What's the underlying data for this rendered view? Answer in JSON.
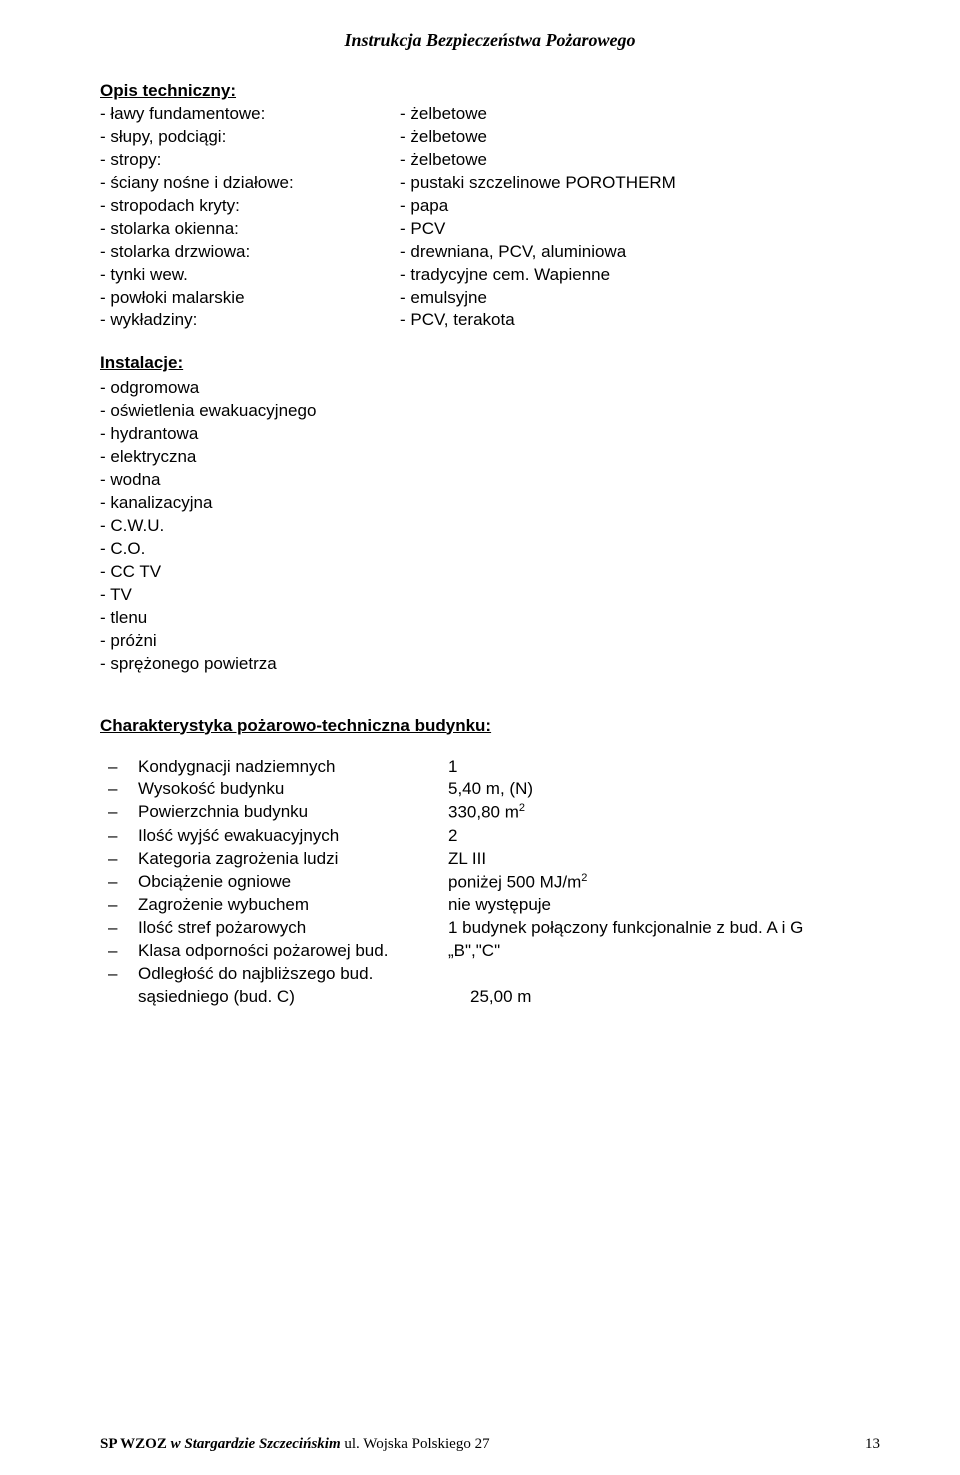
{
  "header": {
    "title": "Instrukcja Bezpieczeństwa Pożarowego"
  },
  "tech": {
    "title": "Opis techniczny:",
    "rows": [
      {
        "l": "- ławy fundamentowe:",
        "r": "- żelbetowe"
      },
      {
        "l": "- słupy, podciągi:",
        "r": "- żelbetowe"
      },
      {
        "l": "- stropy:",
        "r": "- żelbetowe"
      },
      {
        "l": "- ściany nośne i działowe:",
        "r": "- pustaki szczelinowe POROTHERM"
      },
      {
        "l": "- stropodach kryty:",
        "r": "- papa"
      },
      {
        "l": "- stolarka okienna:",
        "r": "- PCV"
      },
      {
        "l": "- stolarka drzwiowa:",
        "r": "- drewniana, PCV, aluminiowa"
      },
      {
        "l": "- tynki wew.",
        "r": "- tradycyjne cem. Wapienne"
      },
      {
        "l": "- powłoki malarskie",
        "r": "- emulsyjne"
      },
      {
        "l": "- wykładziny:",
        "r": "- PCV, terakota"
      }
    ]
  },
  "inst": {
    "title": "Instalacje:",
    "items": [
      "- odgromowa",
      "- oświetlenia ewakuacyjnego",
      "- hydrantowa",
      "- elektryczna",
      "- wodna",
      "- kanalizacyjna",
      "- C.W.U.",
      "- C.O.",
      "- CC TV",
      "- TV",
      "- tlenu",
      "- próżni",
      "- sprężonego powietrza"
    ]
  },
  "char": {
    "title": "Charakterystyka pożarowo-techniczna budynku:",
    "rows": [
      {
        "l": "Kondygnacji nadziemnych",
        "r": "1"
      },
      {
        "l": "Wysokość budynku",
        "r": "5,40 m, (N)"
      },
      {
        "l": "Powierzchnia budynku",
        "r": "330,80 m",
        "sup": "2"
      },
      {
        "l": "Ilość wyjść ewakuacyjnych",
        "r": "2"
      },
      {
        "l": "Kategoria zagrożenia ludzi",
        "r": "ZL III"
      },
      {
        "l": "Obciążenie ogniowe",
        "r": "poniżej 500 MJ/m",
        "sup": "2"
      },
      {
        "l": "Zagrożenie wybuchem",
        "r": "nie występuje"
      },
      {
        "l": "Ilość stref pożarowych",
        "r": "1 budynek połączony funkcjonalnie z bud. A i G"
      },
      {
        "l": "Klasa odporności pożarowej bud.",
        "r": "„B\",\"C\""
      },
      {
        "l": "Odległość do najbliższego bud.",
        "r": ""
      },
      {
        "l": "sąsiedniego (bud. C)",
        "r": "25,00 m",
        "indent": true
      }
    ]
  },
  "footer": {
    "left_bold": "SP WZOZ ",
    "left_italic": "w Stargardzie Szczecińskim",
    "left_normal": " ul.  Wojska Polskiego 27",
    "page": "13"
  }
}
